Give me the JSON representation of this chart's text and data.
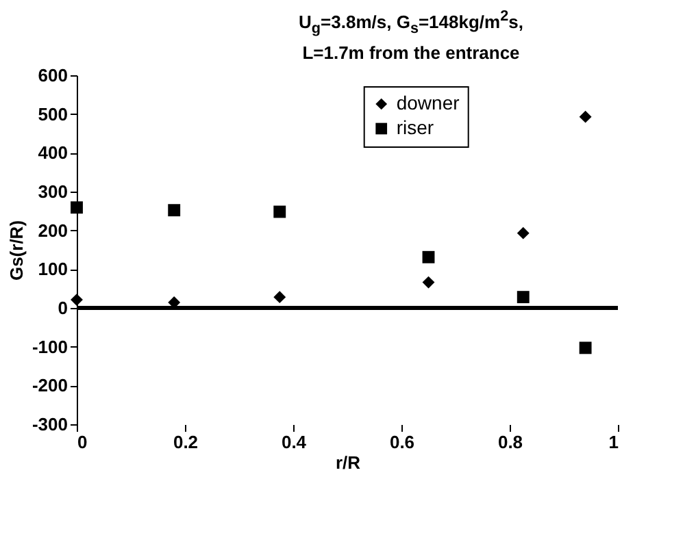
{
  "chart_data": {
    "type": "scatter",
    "title": "U$_{g}$=3.8m/s, G$_{s}$=148kg/m$^{2}$s,",
    "subtitle": "L=1.7m from the entrance",
    "xlabel": "r/R",
    "ylabel": "Gs(r/R)",
    "x": [
      0,
      0.18,
      0.375,
      0.65,
      0.825,
      0.94
    ],
    "series": [
      {
        "name": "downer",
        "color": "#000000",
        "marker": "diamond",
        "values": [
          21,
          14,
          28,
          66,
          193,
          493
        ]
      },
      {
        "name": "riser",
        "color": "#000000",
        "marker": "square",
        "values": [
          259,
          252,
          248,
          131,
          28,
          -103
        ]
      }
    ],
    "xlim": [
      0,
      1
    ],
    "xticks": [
      0,
      0.2,
      0.4,
      0.6,
      0.8,
      1
    ],
    "ylim": [
      -300,
      600
    ],
    "yticks": [
      -300,
      -200,
      -100,
      0,
      100,
      200,
      300,
      400,
      500,
      600
    ],
    "ref_lines": [
      {
        "axis": "y",
        "value": 0,
        "color": "#000000"
      }
    ],
    "grid": false,
    "legend": "top right"
  }
}
